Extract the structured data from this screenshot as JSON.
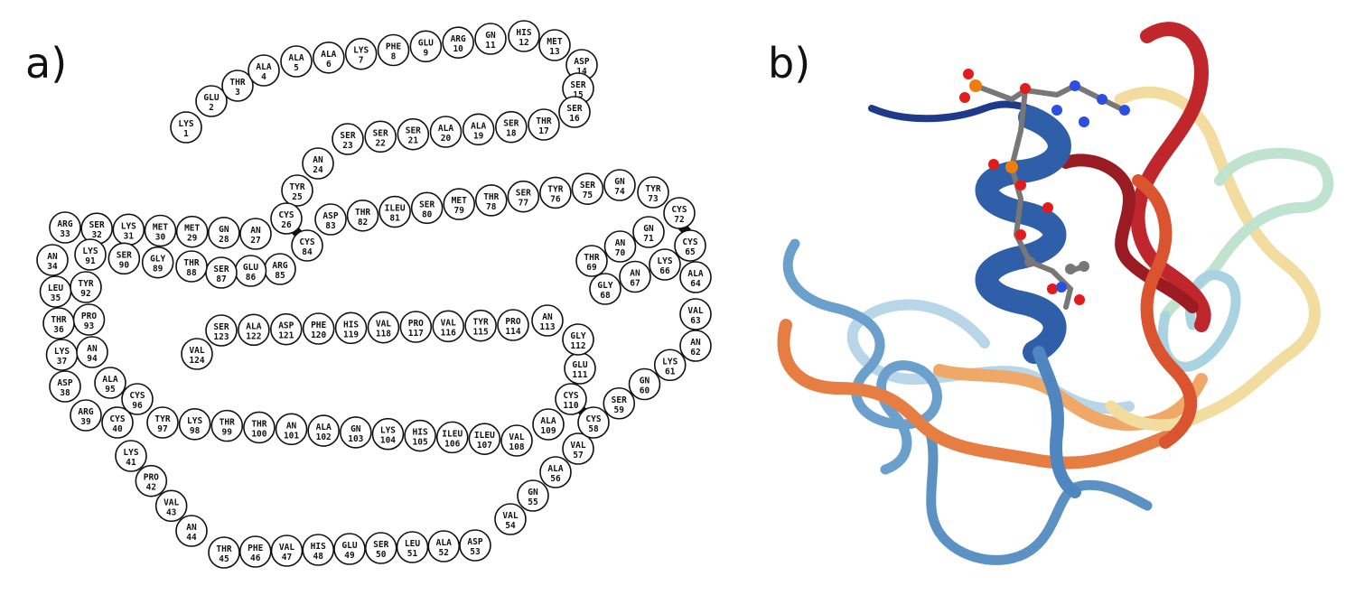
{
  "panels": {
    "a_label": "a)",
    "b_label": "b)"
  },
  "colors": {
    "helix_dark": "#1e3a8a",
    "helix_mid": "#2f5fa8",
    "strand_red": "#c0272d",
    "strand_darkred": "#9b1b22",
    "strand_orange": "#e67e44",
    "strand_lightorange": "#f0a868",
    "sheet_yellow": "#f3dc9f",
    "loop_lightblue": "#9cc3dd",
    "loop_blue": "#5b92c3",
    "loop_mint": "#bfe3cf",
    "atom_carbon": "#777777",
    "atom_oxygen": "#e21b1b",
    "atom_nitrogen": "#2b4fe0",
    "atom_phosphorus": "#ee7d10"
  },
  "residues": [
    {
      "name": "LYS",
      "num": "1"
    },
    {
      "name": "GLU",
      "num": "2"
    },
    {
      "name": "THR",
      "num": "3"
    },
    {
      "name": "ALA",
      "num": "4"
    },
    {
      "name": "ALA",
      "num": "5"
    },
    {
      "name": "ALA",
      "num": "6"
    },
    {
      "name": "LYS",
      "num": "7"
    },
    {
      "name": "PHE",
      "num": "8"
    },
    {
      "name": "GLU",
      "num": "9"
    },
    {
      "name": "ARG",
      "num": "10"
    },
    {
      "name": "GN",
      "num": "11"
    },
    {
      "name": "HIS",
      "num": "12"
    },
    {
      "name": "MET",
      "num": "13"
    },
    {
      "name": "ASP",
      "num": "14"
    },
    {
      "name": "SER",
      "num": "15"
    },
    {
      "name": "SER",
      "num": "16"
    },
    {
      "name": "THR",
      "num": "17"
    },
    {
      "name": "SER",
      "num": "18"
    },
    {
      "name": "ALA",
      "num": "19"
    },
    {
      "name": "ALA",
      "num": "20"
    },
    {
      "name": "SER",
      "num": "21"
    },
    {
      "name": "SER",
      "num": "22"
    },
    {
      "name": "SER",
      "num": "23"
    },
    {
      "name": "AN",
      "num": "24"
    },
    {
      "name": "TYR",
      "num": "25"
    },
    {
      "name": "CYS",
      "num": "26"
    },
    {
      "name": "AN",
      "num": "27"
    },
    {
      "name": "GN",
      "num": "28"
    },
    {
      "name": "MET",
      "num": "29"
    },
    {
      "name": "MET",
      "num": "30"
    },
    {
      "name": "LYS",
      "num": "31"
    },
    {
      "name": "SER",
      "num": "32"
    },
    {
      "name": "ARG",
      "num": "33"
    },
    {
      "name": "AN",
      "num": "34"
    },
    {
      "name": "LEU",
      "num": "35"
    },
    {
      "name": "THR",
      "num": "36"
    },
    {
      "name": "LYS",
      "num": "37"
    },
    {
      "name": "ASP",
      "num": "38"
    },
    {
      "name": "ARG",
      "num": "39"
    },
    {
      "name": "CYS",
      "num": "40"
    },
    {
      "name": "LYS",
      "num": "41"
    },
    {
      "name": "PRO",
      "num": "42"
    },
    {
      "name": "VAL",
      "num": "43"
    },
    {
      "name": "AN",
      "num": "44"
    },
    {
      "name": "THR",
      "num": "45"
    },
    {
      "name": "PHE",
      "num": "46"
    },
    {
      "name": "VAL",
      "num": "47"
    },
    {
      "name": "HIS",
      "num": "48"
    },
    {
      "name": "GLU",
      "num": "49"
    },
    {
      "name": "SER",
      "num": "50"
    },
    {
      "name": "LEU",
      "num": "51"
    },
    {
      "name": "ALA",
      "num": "52"
    },
    {
      "name": "ASP",
      "num": "53"
    },
    {
      "name": "VAL",
      "num": "54"
    },
    {
      "name": "GN",
      "num": "55"
    },
    {
      "name": "ALA",
      "num": "56"
    },
    {
      "name": "VAL",
      "num": "57"
    },
    {
      "name": "CYS",
      "num": "58"
    },
    {
      "name": "SER",
      "num": "59"
    },
    {
      "name": "GN",
      "num": "60"
    },
    {
      "name": "LYS",
      "num": "61"
    },
    {
      "name": "AN",
      "num": "62"
    },
    {
      "name": "VAL",
      "num": "63"
    },
    {
      "name": "ALA",
      "num": "64"
    },
    {
      "name": "CYS",
      "num": "65"
    },
    {
      "name": "LYS",
      "num": "66"
    },
    {
      "name": "AN",
      "num": "67"
    },
    {
      "name": "GLY",
      "num": "68"
    },
    {
      "name": "THR",
      "num": "69"
    },
    {
      "name": "AN",
      "num": "70"
    },
    {
      "name": "GN",
      "num": "71"
    },
    {
      "name": "CYS",
      "num": "72"
    },
    {
      "name": "TYR",
      "num": "73"
    },
    {
      "name": "GN",
      "num": "74"
    },
    {
      "name": "SER",
      "num": "75"
    },
    {
      "name": "TYR",
      "num": "76"
    },
    {
      "name": "SER",
      "num": "77"
    },
    {
      "name": "THR",
      "num": "78"
    },
    {
      "name": "MET",
      "num": "79"
    },
    {
      "name": "SER",
      "num": "80"
    },
    {
      "name": "ILEU",
      "num": "81"
    },
    {
      "name": "THR",
      "num": "82"
    },
    {
      "name": "ASP",
      "num": "83"
    },
    {
      "name": "CYS",
      "num": "84"
    },
    {
      "name": "ARG",
      "num": "85"
    },
    {
      "name": "GLU",
      "num": "86"
    },
    {
      "name": "SER",
      "num": "87"
    },
    {
      "name": "THR",
      "num": "88"
    },
    {
      "name": "GLY",
      "num": "89"
    },
    {
      "name": "SER",
      "num": "90"
    },
    {
      "name": "LYS",
      "num": "91"
    },
    {
      "name": "TYR",
      "num": "92"
    },
    {
      "name": "PRO",
      "num": "93"
    },
    {
      "name": "AN",
      "num": "94"
    },
    {
      "name": "ALA",
      "num": "95"
    },
    {
      "name": "CYS",
      "num": "96"
    },
    {
      "name": "TYR",
      "num": "97"
    },
    {
      "name": "LYS",
      "num": "98"
    },
    {
      "name": "THR",
      "num": "99"
    },
    {
      "name": "THR",
      "num": "100"
    },
    {
      "name": "AN",
      "num": "101"
    },
    {
      "name": "ALA",
      "num": "102"
    },
    {
      "name": "GN",
      "num": "103"
    },
    {
      "name": "LYS",
      "num": "104"
    },
    {
      "name": "HIS",
      "num": "105"
    },
    {
      "name": "ILEU",
      "num": "106"
    },
    {
      "name": "ILEU",
      "num": "107"
    },
    {
      "name": "VAL",
      "num": "108"
    },
    {
      "name": "ALA",
      "num": "109"
    },
    {
      "name": "CYS",
      "num": "110"
    },
    {
      "name": "GLU",
      "num": "111"
    },
    {
      "name": "GLY",
      "num": "112"
    },
    {
      "name": "AN",
      "num": "113"
    },
    {
      "name": "PRO",
      "num": "114"
    },
    {
      "name": "TYR",
      "num": "115"
    },
    {
      "name": "VAL",
      "num": "116"
    },
    {
      "name": "PRO",
      "num": "117"
    },
    {
      "name": "VAL",
      "num": "118"
    },
    {
      "name": "HIS",
      "num": "119"
    },
    {
      "name": "PHE",
      "num": "120"
    },
    {
      "name": "ASP",
      "num": "121"
    },
    {
      "name": "ALA",
      "num": "122"
    },
    {
      "name": "SER",
      "num": "123"
    },
    {
      "name": "VAL",
      "num": "124"
    }
  ],
  "disulfide_bonds": [
    [
      26,
      84
    ],
    [
      40,
      96
    ],
    [
      58,
      110
    ],
    [
      65,
      72
    ]
  ]
}
